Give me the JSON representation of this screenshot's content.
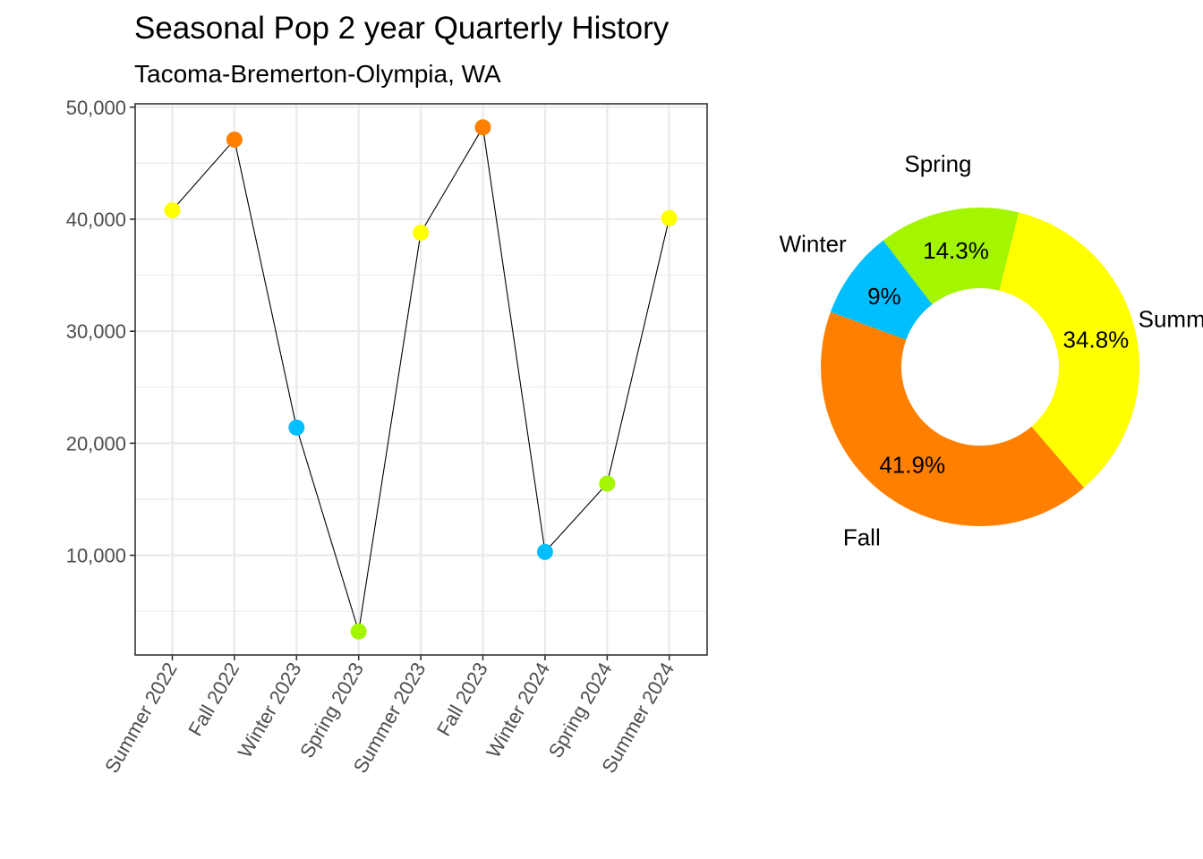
{
  "header": {
    "title": "Seasonal Pop 2 year Quarterly History",
    "subtitle": "Tacoma-Bremerton-Olympia, WA"
  },
  "colors": {
    "Summer": "#FFFF00",
    "Fall": "#FF8000",
    "Winter": "#00BFFF",
    "Spring": "#A3F500",
    "line": "#000000",
    "grid": "#EBEBEB",
    "panel_border": "#333333"
  },
  "chart_data": [
    {
      "type": "line",
      "categories": [
        "Summer 2022",
        "Fall 2022",
        "Winter 2023",
        "Spring 2023",
        "Summer 2023",
        "Fall 2023",
        "Winter 2024",
        "Spring 2024",
        "Summer 2024"
      ],
      "seasons": [
        "Summer",
        "Fall",
        "Winter",
        "Spring",
        "Summer",
        "Fall",
        "Winter",
        "Spring",
        "Summer"
      ],
      "values": [
        40800,
        47100,
        21400,
        3200,
        38800,
        48200,
        10300,
        16400,
        40100
      ],
      "yticks": [
        10000,
        20000,
        30000,
        40000,
        50000
      ],
      "ytick_labels": [
        "10,000",
        "20,000",
        "30,000",
        "40,000",
        "50,000"
      ],
      "ylim": [
        1100,
        50300
      ],
      "grid": true,
      "title": "Seasonal Pop 2 year Quarterly History",
      "subtitle": "Tacoma-Bremerton-Olympia, WA"
    },
    {
      "type": "pie",
      "donut": true,
      "slices": [
        {
          "label": "Summer",
          "value": 34.8,
          "pct_label": "34.8%"
        },
        {
          "label": "Fall",
          "value": 41.9,
          "pct_label": "41.9%"
        },
        {
          "label": "Winter",
          "value": 9.0,
          "pct_label": "9%"
        },
        {
          "label": "Spring",
          "value": 14.3,
          "pct_label": "14.3%"
        }
      ]
    }
  ]
}
